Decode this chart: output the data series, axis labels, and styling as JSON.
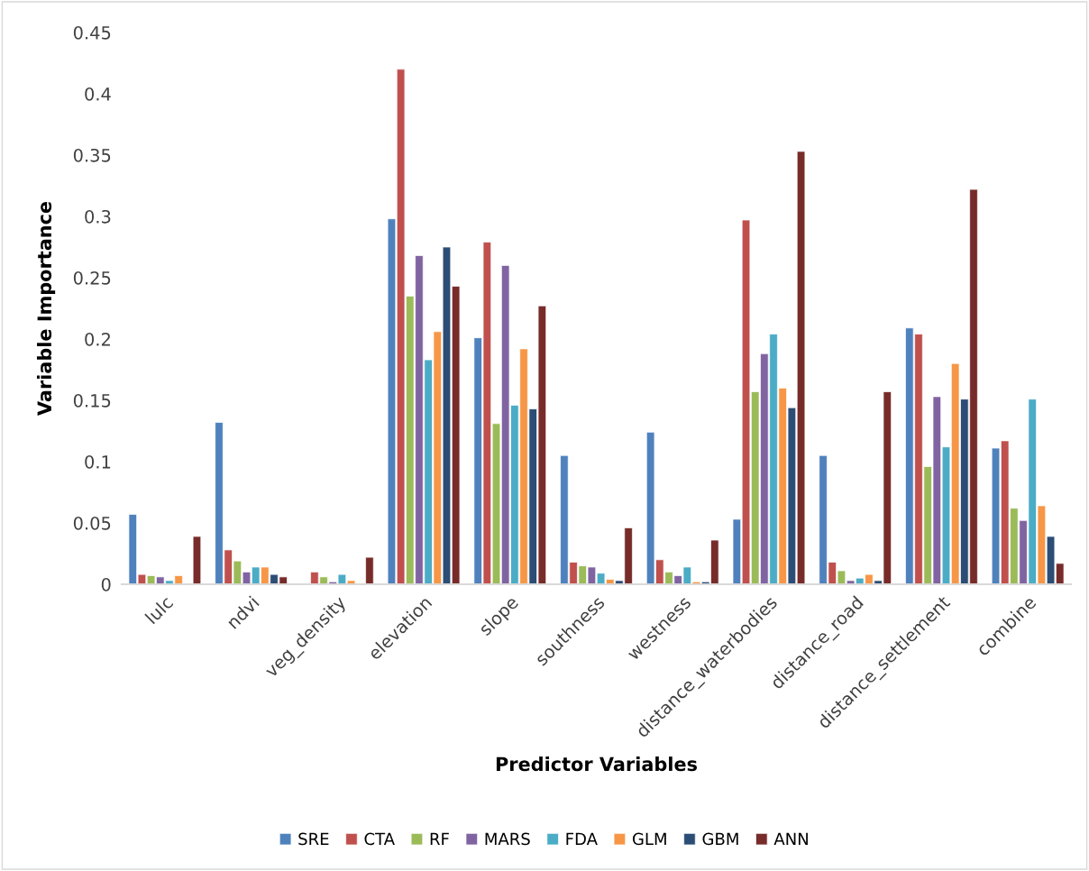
{
  "chart_data": {
    "type": "bar",
    "xlabel": "Predictor Variables",
    "ylabel": "Variable Importance",
    "categories": [
      "lulc",
      "ndvi",
      "veg_density",
      "elevation",
      "slope",
      "southness",
      "westness",
      "distance_waterbodies",
      "distance_road",
      "distance_settlement",
      "combine"
    ],
    "series": [
      {
        "name": "SRE",
        "color": "#4f81bd",
        "values": [
          0.057,
          0.132,
          null,
          0.298,
          0.201,
          0.105,
          0.124,
          0.053,
          0.105,
          0.209,
          0.111
        ]
      },
      {
        "name": "CTA",
        "color": "#c0504d",
        "values": [
          0.008,
          0.028,
          0.01,
          0.42,
          0.279,
          0.018,
          0.02,
          0.297,
          0.018,
          0.204,
          0.117
        ]
      },
      {
        "name": "RF",
        "color": "#9bbb59",
        "values": [
          0.007,
          0.019,
          0.006,
          0.235,
          0.131,
          0.015,
          0.01,
          0.157,
          0.011,
          0.096,
          0.062
        ]
      },
      {
        "name": "MARS",
        "color": "#8064a2",
        "values": [
          0.006,
          0.01,
          0.002,
          0.268,
          0.26,
          0.014,
          0.007,
          0.188,
          0.003,
          0.153,
          0.052
        ]
      },
      {
        "name": "FDA",
        "color": "#4bacc6",
        "values": [
          0.003,
          0.014,
          0.008,
          0.183,
          0.146,
          0.009,
          0.014,
          0.204,
          0.005,
          0.112,
          0.151
        ]
      },
      {
        "name": "GLM",
        "color": "#f79646",
        "values": [
          0.007,
          0.014,
          0.003,
          0.206,
          0.192,
          0.004,
          0.002,
          0.16,
          0.008,
          0.18,
          0.064
        ]
      },
      {
        "name": "GBM",
        "color": "#2c4d75",
        "values": [
          null,
          0.008,
          null,
          0.275,
          0.143,
          0.003,
          0.002,
          0.144,
          0.003,
          0.151,
          0.039
        ]
      },
      {
        "name": "ANN",
        "color": "#772c2a",
        "values": [
          0.039,
          0.006,
          0.022,
          0.243,
          0.227,
          0.046,
          0.036,
          0.353,
          0.157,
          0.322,
          0.017
        ]
      }
    ],
    "ylim": [
      0,
      0.45
    ],
    "yticks": [
      {
        "value": 0,
        "label": "0"
      },
      0.05,
      0.1,
      0.15,
      0.2,
      0.25,
      0.3,
      0.35,
      0.4,
      0.45
    ],
    "grid": false,
    "legend": "bottom"
  }
}
